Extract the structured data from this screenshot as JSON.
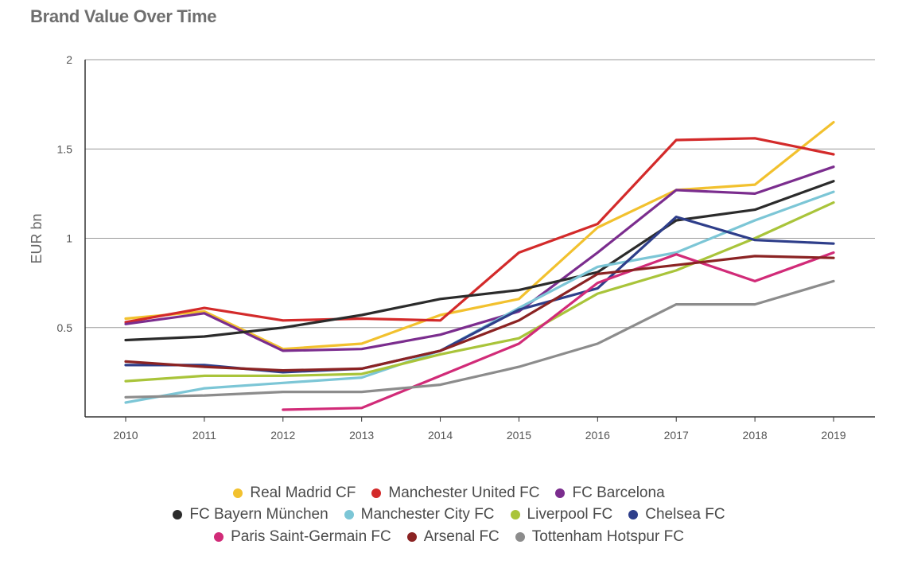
{
  "chart_data": {
    "type": "line",
    "title": "Brand Value Over Time",
    "ylabel": "EUR bn",
    "xlabel": "",
    "x": [
      "2010",
      "2011",
      "2012",
      "2013",
      "2014",
      "2015",
      "2016",
      "2017",
      "2018",
      "2019"
    ],
    "ylim": [
      0,
      2
    ],
    "yticks": [
      {
        "value": 0.5,
        "label": "0.5"
      },
      {
        "value": 1.0,
        "label": "1"
      },
      {
        "value": 1.5,
        "label": "1.5"
      },
      {
        "value": 2.0,
        "label": "2"
      }
    ],
    "grid": true,
    "legend_position": "bottom",
    "series": [
      {
        "name": "Real Madrid CF",
        "color": "#f2c12e",
        "values": [
          0.55,
          0.59,
          0.38,
          0.41,
          0.57,
          0.66,
          1.06,
          1.27,
          1.3,
          1.65
        ]
      },
      {
        "name": "Manchester United FC",
        "color": "#d32a2a",
        "values": [
          0.53,
          0.61,
          0.54,
          0.55,
          0.54,
          0.92,
          1.08,
          1.55,
          1.56,
          1.47
        ]
      },
      {
        "name": "FC Barcelona",
        "color": "#7b2d8e",
        "values": [
          0.52,
          0.58,
          0.37,
          0.38,
          0.46,
          0.59,
          0.92,
          1.27,
          1.25,
          1.4
        ]
      },
      {
        "name": "FC Bayern München",
        "color": "#2b2b2b",
        "values": [
          0.43,
          0.45,
          0.5,
          0.57,
          0.66,
          0.71,
          0.81,
          1.1,
          1.16,
          1.32
        ]
      },
      {
        "name": "Manchester City FC",
        "color": "#7cc6d6",
        "values": [
          0.08,
          0.16,
          0.19,
          0.22,
          0.37,
          0.61,
          0.84,
          0.92,
          1.1,
          1.26
        ]
      },
      {
        "name": "Liverpool FC",
        "color": "#a9c43a",
        "values": [
          0.2,
          0.23,
          0.23,
          0.24,
          0.35,
          0.44,
          0.69,
          0.82,
          1.0,
          1.2
        ]
      },
      {
        "name": "Chelsea FC",
        "color": "#2e3e8a",
        "values": [
          0.29,
          0.29,
          0.25,
          0.27,
          0.37,
          0.6,
          0.72,
          1.12,
          0.99,
          0.97
        ]
      },
      {
        "name": "Paris Saint-Germain FC",
        "color": "#d12b78",
        "values": [
          null,
          null,
          0.04,
          0.05,
          0.23,
          0.41,
          0.75,
          0.91,
          0.76,
          0.92
        ]
      },
      {
        "name": "Arsenal FC",
        "color": "#8b2323",
        "values": [
          0.31,
          0.28,
          0.26,
          0.27,
          0.37,
          0.54,
          0.8,
          0.85,
          0.9,
          0.89
        ]
      },
      {
        "name": "Tottenham Hotspur FC",
        "color": "#8c8c8c",
        "values": [
          0.11,
          0.12,
          0.14,
          0.14,
          0.18,
          0.28,
          0.41,
          0.63,
          0.63,
          0.76
        ]
      }
    ],
    "legend_rows": [
      [
        "Real Madrid CF",
        "Manchester United FC",
        "FC Barcelona"
      ],
      [
        "FC Bayern München",
        "Manchester City FC",
        "Liverpool FC",
        "Chelsea FC"
      ],
      [
        "Paris Saint-Germain FC",
        "Arsenal FC",
        "Tottenham Hotspur FC"
      ]
    ]
  }
}
